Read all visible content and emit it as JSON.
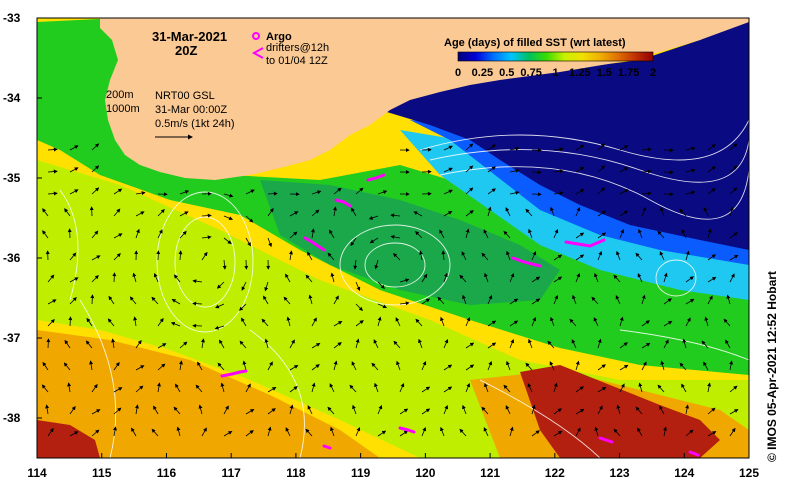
{
  "map": {
    "extent": {
      "lon_min": 114,
      "lon_max": 125,
      "lat_min": -38.5,
      "lat_max": -33
    },
    "lon_ticks": [
      "114",
      "115",
      "116",
      "117",
      "118",
      "119",
      "120",
      "121",
      "122",
      "123",
      "124",
      "125"
    ],
    "lat_ticks": [
      "-33",
      "-34",
      "-35",
      "-36",
      "-37",
      "-38"
    ],
    "date_block": {
      "date": "31-Mar-2021",
      "hour": "20Z"
    },
    "legend": {
      "argo_label": "Argo",
      "drifters_line1": "drifters@12h",
      "drifters_line2": "to 01/04 12Z"
    },
    "isobaths": {
      "shallow": "200m",
      "deep": "1000m"
    },
    "product_note": {
      "line1": "NRT00 GSL",
      "line2": "31-Mar 00:00Z",
      "line3": "0.5m/s (1kt 24h)"
    },
    "credit": "© IMOS 05-Apr-2021 12:52 Hobart"
  },
  "colorbar": {
    "title": "Age (days) of filled SST (wrt latest)",
    "tick_labels": [
      "0",
      "0.25",
      "0.5",
      "0.75",
      "1",
      "1.25",
      "1.5",
      "1.75",
      "2"
    ],
    "ramp": [
      "#00007a",
      "#0000d8",
      "#0070ff",
      "#00c4ff",
      "#00c060",
      "#3adc00",
      "#c8f000",
      "#f0e000",
      "#f0b000",
      "#e07000",
      "#c03000",
      "#900000"
    ]
  },
  "colors": {
    "land": "#fbc993",
    "deep_navy": "#0a0a82",
    "blue": "#0b5cff",
    "cyan": "#1ec8f0",
    "green_dark": "#1aa84a",
    "green": "#22cc1e",
    "lime": "#bfee00",
    "yellow": "#ffe000",
    "orange": "#f0a800",
    "red": "#b32010",
    "drifter": "#ff00ff"
  }
}
